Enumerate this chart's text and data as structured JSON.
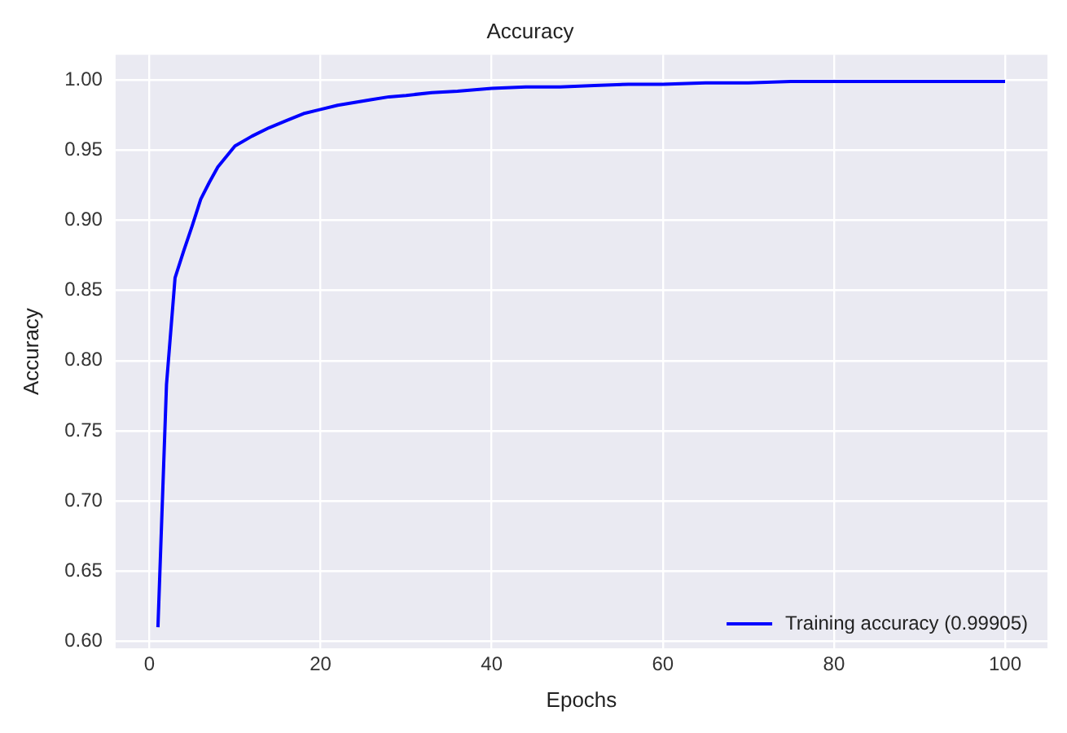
{
  "chart_data": {
    "type": "line",
    "title": "Accuracy",
    "xlabel": "Epochs",
    "ylabel": "Accuracy",
    "series": [
      {
        "name": "Training accuracy (0.99905)",
        "color": "#0000ff",
        "x": [
          1,
          2,
          3,
          4,
          5,
          6,
          7,
          8,
          10,
          12,
          14,
          16,
          18,
          20,
          22,
          24,
          26,
          28,
          30,
          33,
          36,
          40,
          44,
          48,
          52,
          56,
          60,
          65,
          70,
          75,
          80,
          85,
          90,
          95,
          100
        ],
        "values": [
          0.61,
          0.783,
          0.859,
          0.878,
          0.896,
          0.915,
          0.927,
          0.938,
          0.953,
          0.96,
          0.966,
          0.971,
          0.976,
          0.979,
          0.982,
          0.984,
          0.986,
          0.988,
          0.989,
          0.991,
          0.992,
          0.994,
          0.995,
          0.995,
          0.996,
          0.997,
          0.997,
          0.998,
          0.998,
          0.999,
          0.999,
          0.999,
          0.999,
          0.999,
          0.999
        ]
      }
    ],
    "xlim": [
      -3.95,
      104.95
    ],
    "xticks": [
      0,
      20,
      40,
      60,
      80,
      100
    ],
    "ylim": [
      0.595,
      1.018
    ],
    "yticks": [
      {
        "value": 0.6,
        "label": "0.60"
      },
      {
        "value": 0.65,
        "label": "0.65"
      },
      {
        "value": 0.7,
        "label": "0.70"
      },
      {
        "value": 0.75,
        "label": "0.75"
      },
      {
        "value": 0.8,
        "label": "0.80"
      },
      {
        "value": 0.85,
        "label": "0.85"
      },
      {
        "value": 0.9,
        "label": "0.90"
      },
      {
        "value": 0.95,
        "label": "0.95"
      },
      {
        "value": 1.0,
        "label": "1.00"
      }
    ],
    "grid": true,
    "legend": "bottom right",
    "marker": "none",
    "line_style": "solid"
  }
}
